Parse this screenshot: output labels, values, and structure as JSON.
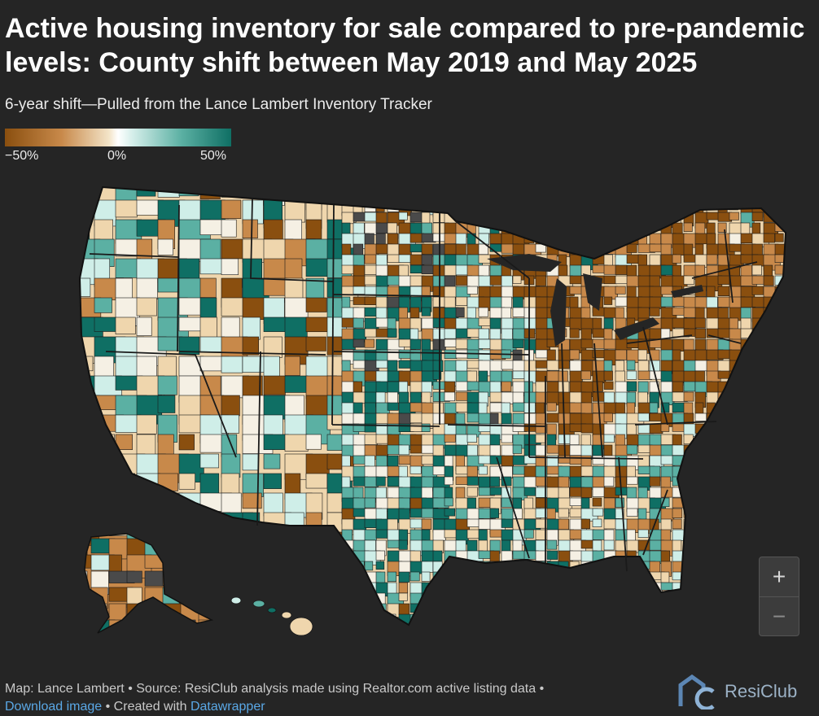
{
  "header": {
    "title": "Active housing inventory for sale compared to pre-pandemic levels: County shift between May 2019 and May 2025",
    "subtitle": "6-year shift—Pulled from the Lance Lambert Inventory Tracker"
  },
  "legend": {
    "colors": {
      "low": "#8a4f0f",
      "mid": "#ffffff",
      "high": "#0f6f64"
    },
    "ticks": [
      "−50%",
      "0%",
      "50%"
    ]
  },
  "map": {
    "colors": {
      "strong_decrease": "#8a4f0f",
      "decrease": "#c8894a",
      "slight_decrease": "#efd6ad",
      "neutral": "#f5f0e4",
      "slight_increase": "#cfeee8",
      "increase": "#5bb0a3",
      "strong_increase": "#0f6f64",
      "no_data": "#4a4a4a",
      "border": "#1a1a1a"
    }
  },
  "zoom": {
    "in_label": "+",
    "out_label": "−"
  },
  "footer": {
    "source_text": "Map: Lance Lambert • Source: ResiClub analysis made using Realtor.com active listing data •",
    "download_link": "Download image",
    "created_with_prefix": " • Created with ",
    "datawrapper_link": "Datawrapper"
  },
  "brand": {
    "name": "ResiClub"
  }
}
